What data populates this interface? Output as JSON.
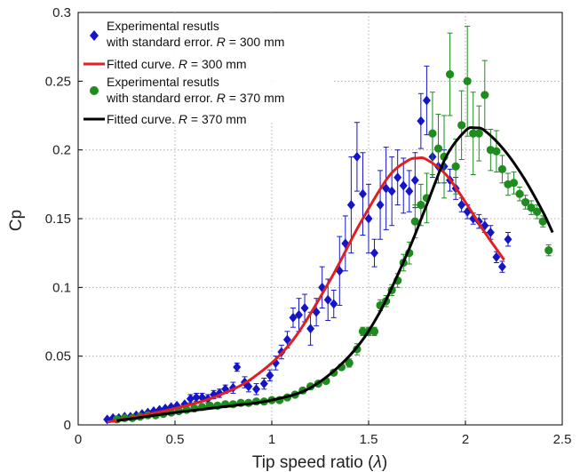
{
  "chart_data": {
    "type": "scatter",
    "xlabel": "Tip speed ratio (",
    "xlabel_symbol": "λ",
    "xlabel_suffix": ")",
    "ylabel": "Cp",
    "xlim": [
      0,
      2.5
    ],
    "ylim": [
      0,
      0.3
    ],
    "xticks": [
      "0",
      "0.5",
      "1",
      "1.5",
      "2",
      "2.5"
    ],
    "yticks": [
      "0",
      "0.05",
      "0.1",
      "0.15",
      "0.2",
      "0.25",
      "0.3"
    ],
    "grid": true,
    "legend_position": "top-left",
    "legend": [
      {
        "line1": "Experimental resutls",
        "line2_prefix": "with standard error. ",
        "line2_var": "R",
        "line2_suffix": " = 300 mm"
      },
      {
        "line1_prefix": "Fitted curve. ",
        "line1_var": "R",
        "line1_suffix": " = 300 mm"
      },
      {
        "line1": "Experimental resutls",
        "line2_prefix": "with standard error. ",
        "line2_var": "R",
        "line2_suffix": " = 370 mm"
      },
      {
        "line1_prefix": "Fitted curve. ",
        "line1_var": "R",
        "line1_suffix": " = 370 mm"
      }
    ],
    "colors": {
      "blue": "#1515c8",
      "red": "#e02020",
      "green": "#1e8c1e",
      "black": "#000000"
    },
    "series": [
      {
        "name": "Experimental resutls with standard error. R = 300 mm",
        "marker": "diamond",
        "color": "#1515c8",
        "points": [
          [
            0.15,
            0.004,
            0
          ],
          [
            0.18,
            0.005,
            0
          ],
          [
            0.21,
            0.005,
            0
          ],
          [
            0.24,
            0.006,
            0
          ],
          [
            0.27,
            0.006,
            0
          ],
          [
            0.3,
            0.007,
            0
          ],
          [
            0.33,
            0.008,
            0
          ],
          [
            0.36,
            0.009,
            0
          ],
          [
            0.39,
            0.01,
            0
          ],
          [
            0.42,
            0.011,
            0
          ],
          [
            0.45,
            0.012,
            0
          ],
          [
            0.48,
            0.013,
            0
          ],
          [
            0.51,
            0.014,
            0
          ],
          [
            0.55,
            0.015,
            0
          ],
          [
            0.58,
            0.019,
            0.003
          ],
          [
            0.61,
            0.02,
            0.003
          ],
          [
            0.64,
            0.02,
            0.003
          ],
          [
            0.67,
            0.019,
            0.003
          ],
          [
            0.7,
            0.022,
            0.003
          ],
          [
            0.73,
            0.023,
            0.003
          ],
          [
            0.76,
            0.026,
            0.003
          ],
          [
            0.8,
            0.027,
            0.004
          ],
          [
            0.82,
            0.042,
            0.003
          ],
          [
            0.86,
            0.031,
            0.004
          ],
          [
            0.88,
            0.028,
            0.004
          ],
          [
            0.92,
            0.026,
            0.004
          ],
          [
            0.96,
            0.03,
            0.004
          ],
          [
            0.99,
            0.036,
            0.004
          ],
          [
            1.02,
            0.045,
            0.005
          ],
          [
            1.05,
            0.053,
            0.005
          ],
          [
            1.08,
            0.062,
            0.006
          ],
          [
            1.11,
            0.078,
            0.007
          ],
          [
            1.14,
            0.08,
            0.012
          ],
          [
            1.17,
            0.085,
            0.01
          ],
          [
            1.2,
            0.07,
            0.012
          ],
          [
            1.23,
            0.082,
            0.01
          ],
          [
            1.26,
            0.1,
            0.015
          ],
          [
            1.29,
            0.091,
            0.015
          ],
          [
            1.32,
            0.088,
            0.01
          ],
          [
            1.35,
            0.112,
            0.025
          ],
          [
            1.38,
            0.132,
            0.02
          ],
          [
            1.41,
            0.16,
            0.035
          ],
          [
            1.44,
            0.195,
            0.025
          ],
          [
            1.47,
            0.168,
            0.03
          ],
          [
            1.5,
            0.15,
            0.025
          ],
          [
            1.53,
            0.125,
            0.01
          ],
          [
            1.56,
            0.16,
            0.025
          ],
          [
            1.59,
            0.172,
            0.03
          ],
          [
            1.62,
            0.17,
            0.025
          ],
          [
            1.65,
            0.18,
            0.02
          ],
          [
            1.68,
            0.174,
            0.02
          ],
          [
            1.71,
            0.17,
            0.015
          ],
          [
            1.74,
            0.178,
            0.02
          ],
          [
            1.77,
            0.221,
            0.02
          ],
          [
            1.8,
            0.236,
            0.025
          ],
          [
            1.83,
            0.195,
            0.015
          ],
          [
            1.86,
            0.188,
            0.012
          ],
          [
            1.89,
            0.188,
            0.012
          ],
          [
            1.92,
            0.178,
            0.008
          ],
          [
            1.95,
            0.172,
            0.008
          ],
          [
            1.98,
            0.16,
            0.005
          ],
          [
            2.01,
            0.155,
            0.005
          ],
          [
            2.04,
            0.15,
            0.004
          ],
          [
            2.07,
            0.148,
            0.005
          ],
          [
            2.1,
            0.145,
            0.005
          ],
          [
            2.13,
            0.14,
            0.005
          ],
          [
            2.16,
            0.122,
            0.004
          ],
          [
            2.19,
            0.115,
            0.004
          ],
          [
            2.22,
            0.135,
            0.005
          ]
        ]
      },
      {
        "name": "Fitted curve. R = 300 mm",
        "type": "line",
        "color": "#e02020",
        "x": [
          0.15,
          0.3,
          0.5,
          0.7,
          0.9,
          1.1,
          1.3,
          1.45,
          1.6,
          1.7,
          1.75,
          1.8,
          1.9,
          2.0,
          2.1,
          2.2
        ],
        "y": [
          0.002,
          0.006,
          0.012,
          0.02,
          0.034,
          0.06,
          0.105,
          0.145,
          0.18,
          0.192,
          0.194,
          0.193,
          0.182,
          0.162,
          0.14,
          0.12
        ]
      },
      {
        "name": "Experimental resutls with standard error. R = 370 mm",
        "marker": "circle",
        "color": "#1e8c1e",
        "points": [
          [
            0.2,
            0.004,
            0
          ],
          [
            0.24,
            0.005,
            0
          ],
          [
            0.28,
            0.005,
            0
          ],
          [
            0.32,
            0.006,
            0
          ],
          [
            0.36,
            0.007,
            0
          ],
          [
            0.4,
            0.007,
            0
          ],
          [
            0.44,
            0.008,
            0
          ],
          [
            0.48,
            0.009,
            0
          ],
          [
            0.52,
            0.01,
            0
          ],
          [
            0.56,
            0.011,
            0
          ],
          [
            0.6,
            0.012,
            0
          ],
          [
            0.64,
            0.013,
            0
          ],
          [
            0.68,
            0.014,
            0
          ],
          [
            0.72,
            0.014,
            0
          ],
          [
            0.76,
            0.015,
            0
          ],
          [
            0.8,
            0.015,
            0
          ],
          [
            0.84,
            0.016,
            0
          ],
          [
            0.88,
            0.016,
            0
          ],
          [
            0.92,
            0.017,
            0
          ],
          [
            0.96,
            0.017,
            0
          ],
          [
            1.0,
            0.018,
            0
          ],
          [
            1.04,
            0.018,
            0
          ],
          [
            1.08,
            0.02,
            0
          ],
          [
            1.12,
            0.022,
            0
          ],
          [
            1.16,
            0.025,
            0
          ],
          [
            1.2,
            0.028,
            0
          ],
          [
            1.24,
            0.03,
            0
          ],
          [
            1.28,
            0.032,
            0
          ],
          [
            1.32,
            0.038,
            0
          ],
          [
            1.36,
            0.042,
            0.002
          ],
          [
            1.4,
            0.045,
            0.003
          ],
          [
            1.44,
            0.055,
            0.004
          ],
          [
            1.47,
            0.068,
            0.003
          ],
          [
            1.5,
            0.068,
            0.003
          ],
          [
            1.53,
            0.068,
            0.003
          ],
          [
            1.56,
            0.087,
            0.004
          ],
          [
            1.59,
            0.09,
            0.004
          ],
          [
            1.62,
            0.098,
            0.004
          ],
          [
            1.65,
            0.105,
            0.005
          ],
          [
            1.68,
            0.118,
            0.006
          ],
          [
            1.71,
            0.125,
            0.008
          ],
          [
            1.74,
            0.148,
            0.012
          ],
          [
            1.77,
            0.16,
            0.015
          ],
          [
            1.8,
            0.165,
            0.018
          ],
          [
            1.83,
            0.212,
            0.03
          ],
          [
            1.86,
            0.201,
            0.025
          ],
          [
            1.89,
            0.195,
            0.03
          ],
          [
            1.92,
            0.255,
            0.03
          ],
          [
            1.95,
            0.188,
            0.02
          ],
          [
            1.98,
            0.218,
            0.025
          ],
          [
            2.01,
            0.25,
            0.04
          ],
          [
            2.04,
            0.212,
            0.03
          ],
          [
            2.07,
            0.212,
            0.02
          ],
          [
            2.1,
            0.24,
            0.025
          ],
          [
            2.13,
            0.2,
            0.015
          ],
          [
            2.16,
            0.199,
            0.015
          ],
          [
            2.19,
            0.186,
            0.01
          ],
          [
            2.22,
            0.175,
            0.008
          ],
          [
            2.25,
            0.176,
            0.008
          ],
          [
            2.28,
            0.168,
            0.005
          ],
          [
            2.31,
            0.162,
            0.005
          ],
          [
            2.34,
            0.158,
            0.005
          ],
          [
            2.37,
            0.155,
            0.005
          ],
          [
            2.4,
            0.148,
            0.004
          ],
          [
            2.43,
            0.127,
            0.004
          ]
        ]
      },
      {
        "name": "Fitted curve. R = 370 mm",
        "type": "line",
        "color": "#000000",
        "x": [
          0.2,
          0.5,
          0.8,
          1.0,
          1.2,
          1.4,
          1.55,
          1.7,
          1.8,
          1.9,
          2.0,
          2.05,
          2.1,
          2.2,
          2.3,
          2.4,
          2.45
        ],
        "y": [
          0.003,
          0.009,
          0.014,
          0.018,
          0.027,
          0.05,
          0.08,
          0.125,
          0.16,
          0.195,
          0.214,
          0.216,
          0.214,
          0.2,
          0.18,
          0.155,
          0.14
        ]
      }
    ]
  }
}
